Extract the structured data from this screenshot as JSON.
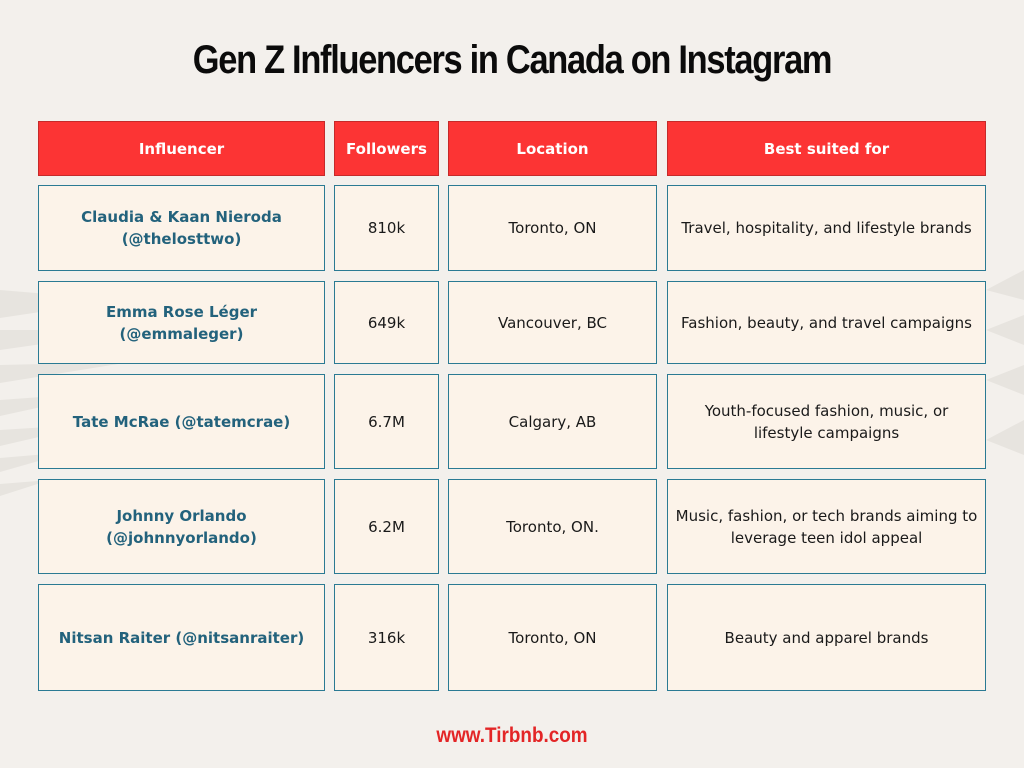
{
  "title": "Gen Z Influencers in Canada on Instagram",
  "table": {
    "headers": [
      "Influencer",
      "Followers",
      "Location",
      "Best suited for"
    ],
    "rows": [
      {
        "influencer": "Claudia & Kaan Nieroda (@thelosttwo)",
        "followers": "810k",
        "location": "Toronto, ON",
        "best_suited_for": "Travel, hospitality, and lifestyle brands"
      },
      {
        "influencer": "Emma Rose Léger (@emmaleger)",
        "followers": "649k",
        "location": "Vancouver, BC",
        "best_suited_for": "Fashion, beauty, and travel campaigns"
      },
      {
        "influencer": "Tate McRae (@tatemcrae)",
        "followers": "6.7M",
        "location": "Calgary, AB",
        "best_suited_for": "Youth-focused fashion, music, or lifestyle campaigns"
      },
      {
        "influencer": "Johnny Orlando (@johnnyorlando)",
        "followers": "6.2M",
        "location": "Toronto, ON.",
        "best_suited_for": "Music, fashion, or tech brands aiming to leverage teen idol appeal"
      },
      {
        "influencer": "Nitsan Raiter (@nitsanraiter)",
        "followers": "316k",
        "location": "Toronto, ON",
        "best_suited_for": "Beauty and apparel brands"
      }
    ]
  },
  "footer": "www.Tirbnb.com",
  "colors": {
    "header_bg": "#fc3434",
    "cell_bg": "#fcf3e9",
    "border": "#2a7a93",
    "name_text": "#23627c",
    "footer_text": "#e32526"
  }
}
